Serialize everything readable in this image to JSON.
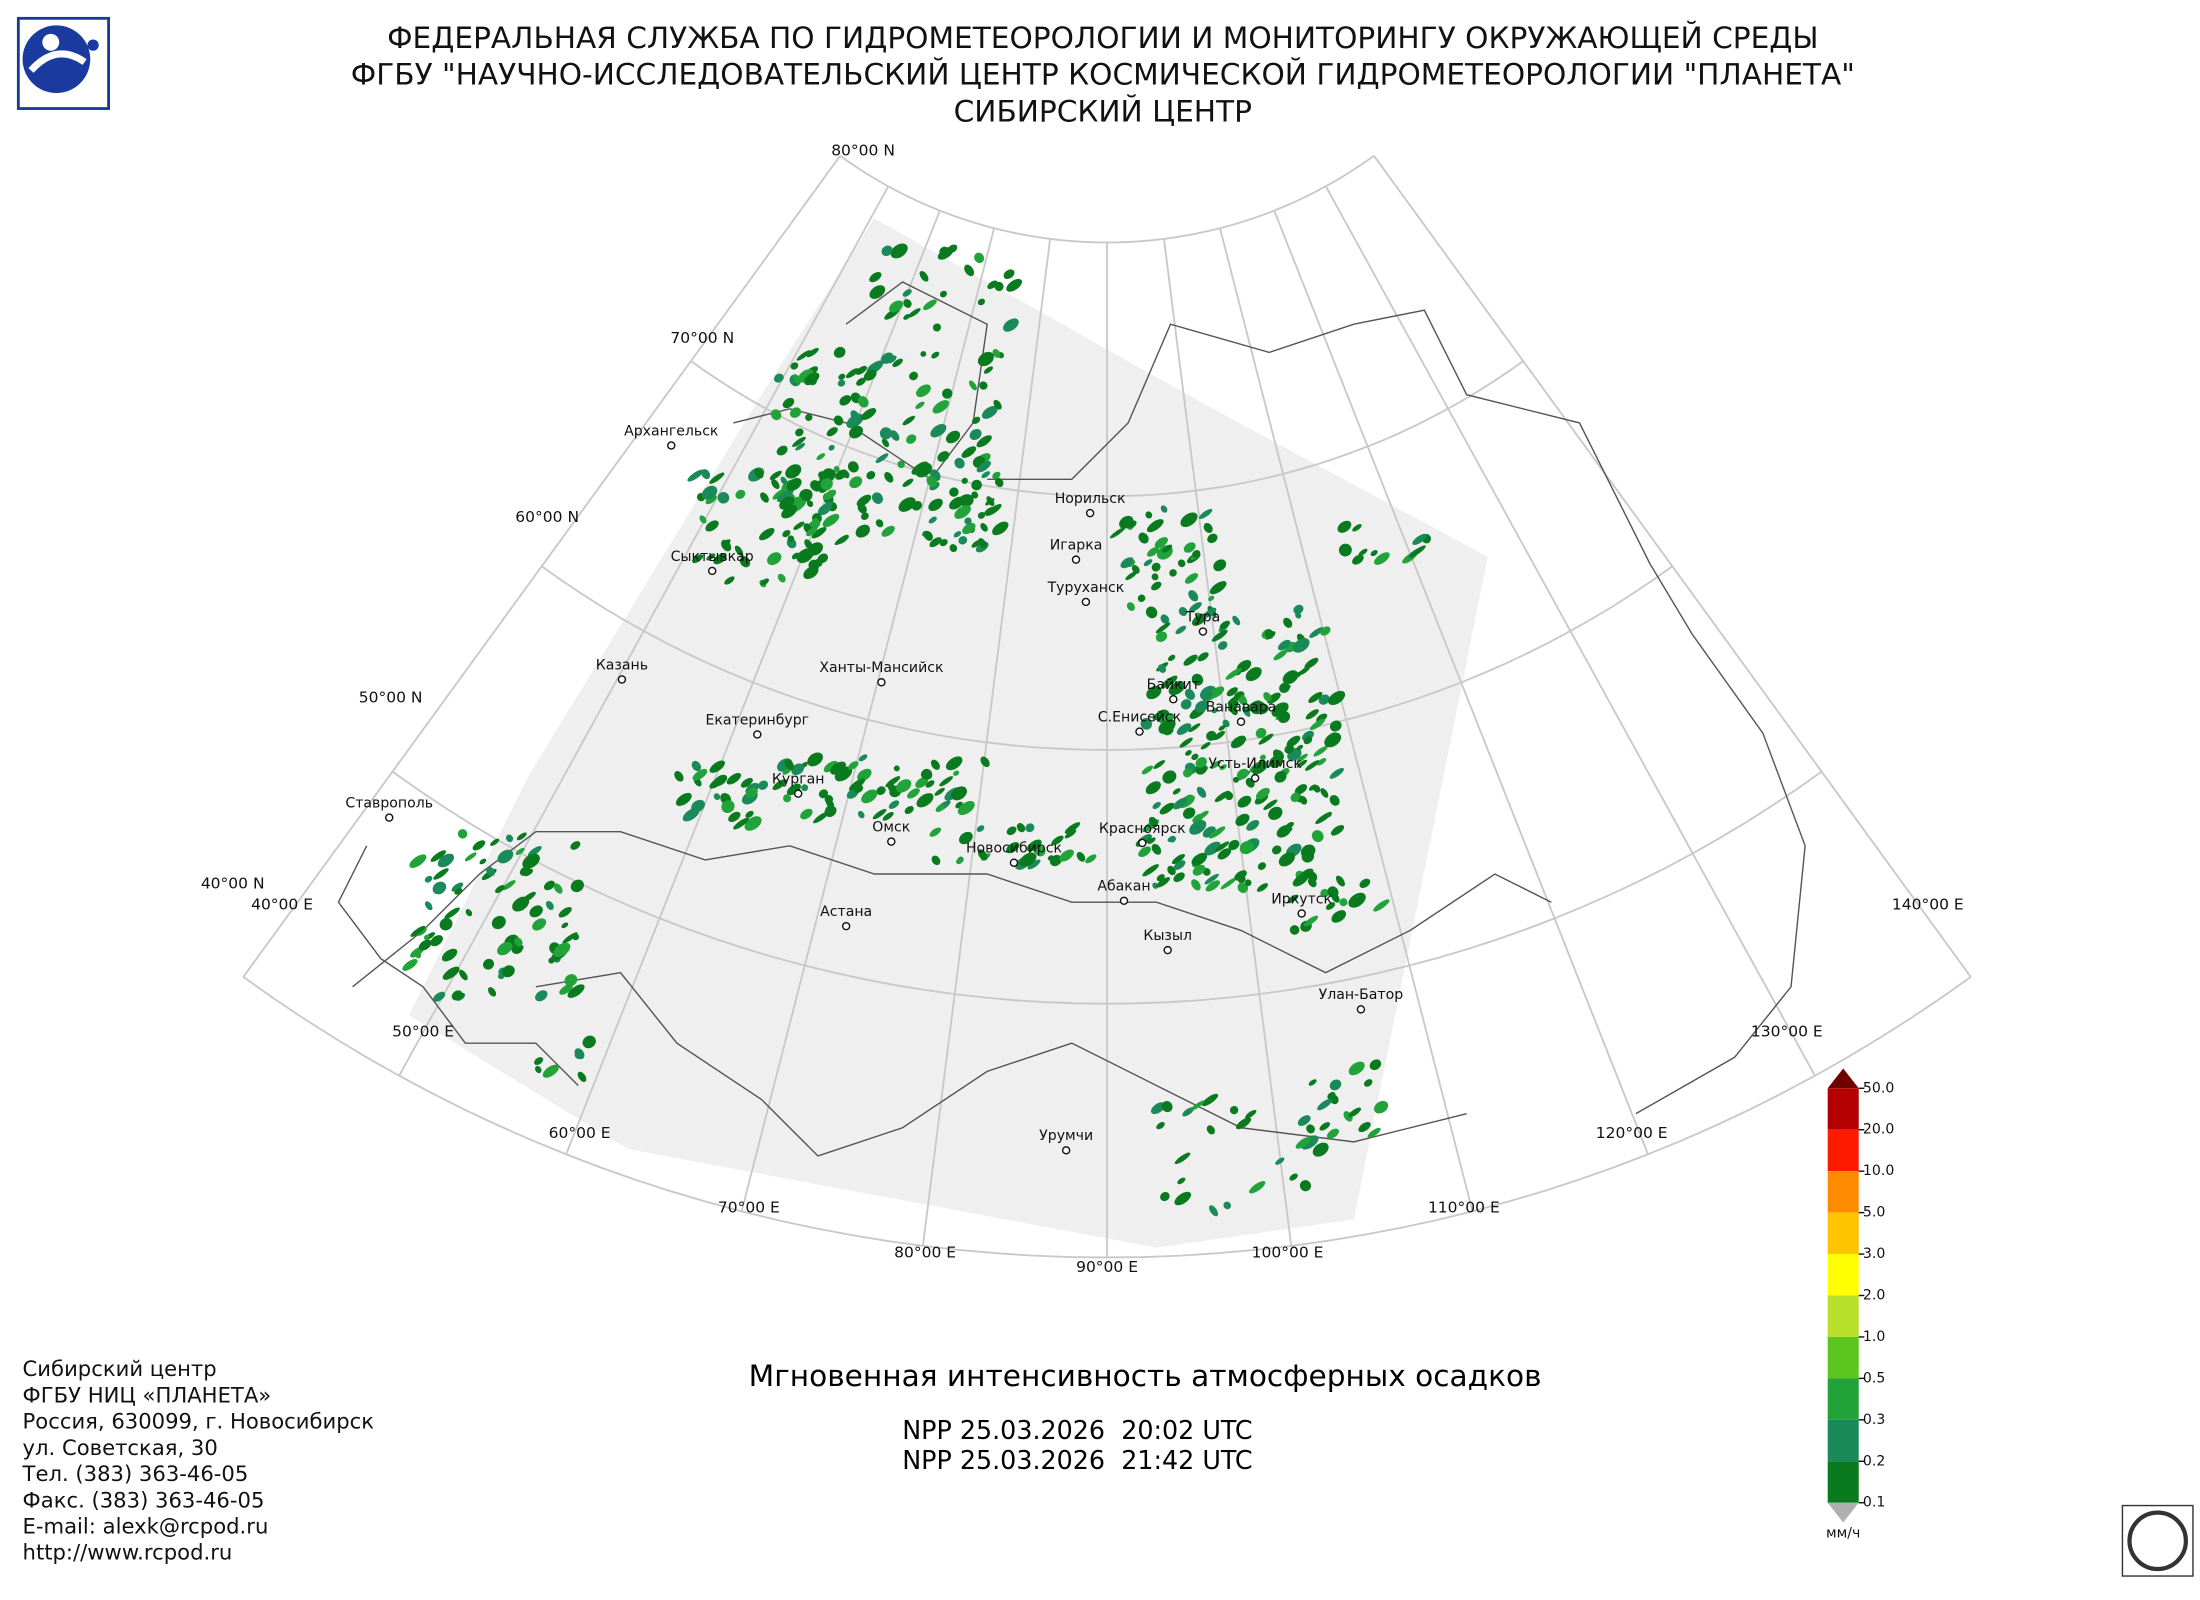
{
  "header": {
    "lines": [
      "ФЕДЕРАЛЬНАЯ СЛУЖБА ПО ГИДРОМЕТЕОРОЛОГИИ И МОНИТОРИНГУ ОКРУЖАЮЩЕЙ СРЕДЫ",
      "ФГБУ \"НАУЧНО-ИССЛЕДОВАТЕЛЬСКИЙ ЦЕНТР КОСМИЧЕСКОЙ ГИДРОМЕТЕОРОЛОГИИ \"ПЛАНЕТА\"",
      "СИБИРСКИЙ ЦЕНТР"
    ]
  },
  "map": {
    "lat_labels": [
      "80°00 N",
      "70°00 N",
      "60°00 N",
      "50°00 N",
      "40°00 N"
    ],
    "lon_labels": [
      "40°00 E",
      "50°00 E",
      "60°00 E",
      "70°00 E",
      "80°00 E",
      "90°00 E",
      "100°00 E",
      "110°00 E",
      "120°00 E",
      "130°00 E",
      "140°00 E"
    ],
    "cities": [
      "Архангельск",
      "Сыктывкар",
      "Казань",
      "Ставрополь",
      "Екатеринбург",
      "Курган",
      "Омск",
      "Новосибирск",
      "Астана",
      "Ханты-Мансийск",
      "Норильск",
      "Игарка",
      "Туруханск",
      "Тура",
      "Байкит",
      "Ванавара",
      "С.Енисейск",
      "Усть-Илимск",
      "Красноярск",
      "Абакан",
      "Кызыл",
      "Иркутск",
      "Улан-Батор",
      "Урумчи"
    ]
  },
  "product": {
    "title": "Мгновенная интенсивность атмосферных осадков",
    "passes": [
      "NPP 25.03.2026  20:02 UTC",
      "NPP 25.03.2026  21:42 UTC"
    ]
  },
  "colorbar": {
    "unit": "мм/ч",
    "levels": [
      "50.0",
      "20.0",
      "10.0",
      "5.0",
      "3.0",
      "2.0",
      "1.0",
      "0.5",
      "0.3",
      "0.2",
      "0.1"
    ],
    "colors": [
      "#b40000",
      "#ff1a00",
      "#ff8c00",
      "#ffc400",
      "#ffff00",
      "#b8e02a",
      "#5cc61e",
      "#22a33a",
      "#1a8a5a",
      "#0a7a1e"
    ],
    "over_color": "#6e0000",
    "under_color": "#b0b0b0"
  },
  "address": [
    "Сибирский центр",
    "ФГБУ НИЦ «ПЛАНЕТА»",
    "Россия, 630099, г. Новосибирск",
    "ул. Советская, 30",
    "Тел. (383) 363-46-05",
    "Факс. (383) 363-46-05",
    "E-mail: alexk@rcpod.ru",
    "http://www.rcpod.ru"
  ]
}
